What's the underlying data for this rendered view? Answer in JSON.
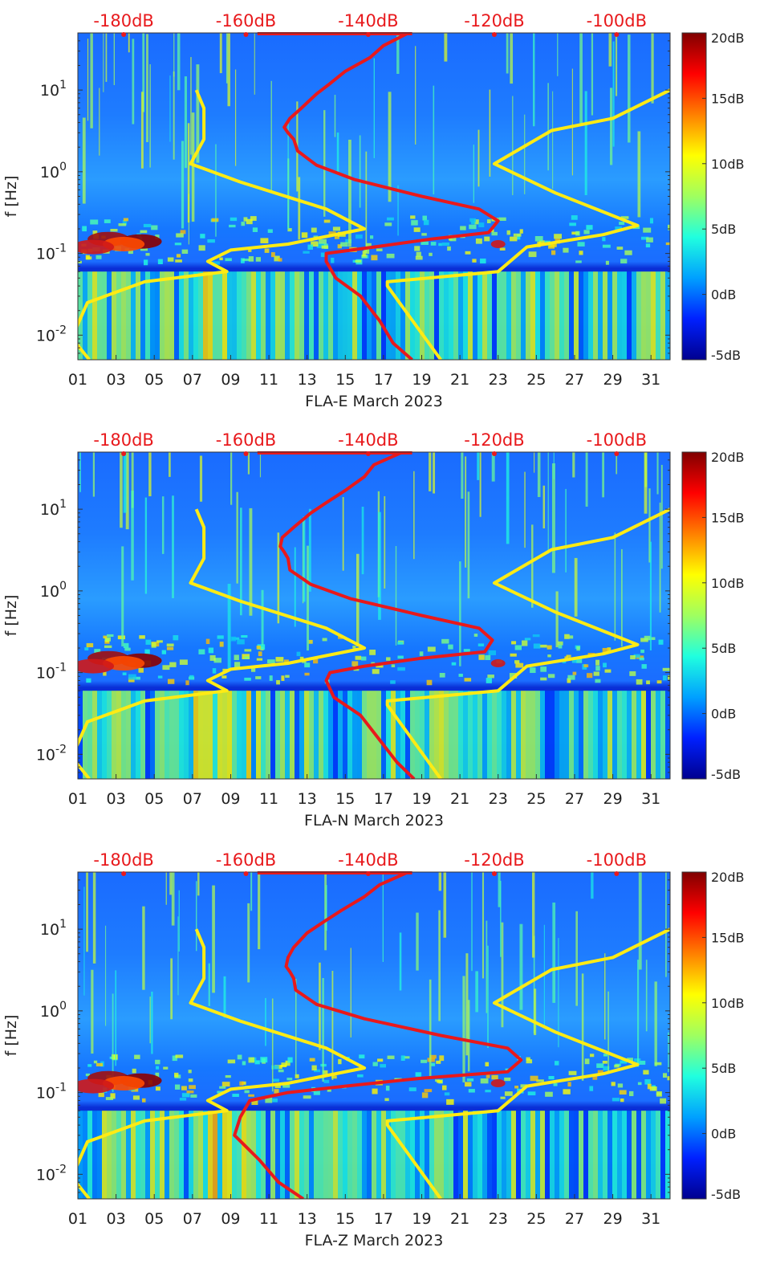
{
  "figure": {
    "colors": {
      "model_curve": "#e8191c",
      "noise_curve": "#ffeb14",
      "db_text": "#e8191c",
      "axis_text": "#222222"
    },
    "colormap": [
      "#00008f",
      "#0020ff",
      "#00a0ff",
      "#20ffdf",
      "#9fff60",
      "#ffff00",
      "#ff8000",
      "#ff0000",
      "#800000"
    ]
  },
  "chart_data": [
    {
      "type": "heatmap",
      "xlabel": "FLA-E March 2023",
      "ylabel": "f [Hz]",
      "x_tick_labels": [
        "01",
        "03",
        "05",
        "07",
        "09",
        "11",
        "13",
        "15",
        "17",
        "19",
        "21",
        "23",
        "25",
        "27",
        "29",
        "31"
      ],
      "xlim": [
        1,
        32
      ],
      "y_scale": "log",
      "ylim": [
        0.005,
        50
      ],
      "y_ticks": [
        {
          "value": 0.01,
          "base": "10",
          "exp": "-2"
        },
        {
          "value": 0.1,
          "base": "10",
          "exp": "-1"
        },
        {
          "value": 1,
          "base": "10",
          "exp": "0"
        },
        {
          "value": 10,
          "base": "10",
          "exp": "1"
        }
      ],
      "top_axis_labels": [
        "-180dB",
        "-160dB",
        "-140dB",
        "-120dB",
        "-100dB"
      ],
      "top_axis_day_positions": [
        3.4,
        9.8,
        16.2,
        22.8,
        29.2
      ],
      "colorbar": {
        "ticks": [
          "20dB",
          "15dB",
          "10dB",
          "5dB",
          "0dB",
          "-5dB"
        ],
        "range": [
          -5,
          20
        ]
      },
      "series": [
        {
          "name": "model-power-curve",
          "color": "#e8191c",
          "x_day": [
            18.3,
            17.0,
            16.3,
            15.0,
            14.2,
            13.5,
            12.7,
            12.1,
            11.8,
            12.0,
            12.3,
            12.5,
            13.5,
            15.5,
            19.0,
            22.0,
            23.0,
            22.5,
            19.5,
            16.5,
            14.0,
            14.0,
            14.5,
            15.8,
            16.8,
            17.5,
            18.5
          ],
          "f_hz": [
            50,
            35,
            25,
            17,
            12,
            9,
            6,
            4.5,
            3.5,
            3,
            2.5,
            1.8,
            1.2,
            0.8,
            0.5,
            0.35,
            0.25,
            0.18,
            0.15,
            0.12,
            0.1,
            0.08,
            0.05,
            0.03,
            0.015,
            0.008,
            0.005
          ]
        },
        {
          "name": "noise-model-curve",
          "color": "#ffeb14",
          "x_day": [
            7.2,
            7.6,
            7.6,
            6.9,
            9.5,
            14.0,
            16.0,
            12.0,
            9.0,
            7.8,
            8.8,
            4.5,
            1.5,
            0.9,
            0.9,
            1.6
          ],
          "f_hz": [
            10,
            6,
            2.5,
            1.25,
            0.75,
            0.35,
            0.2,
            0.13,
            0.11,
            0.08,
            0.06,
            0.045,
            0.025,
            0.012,
            0.008,
            0.005
          ]
        },
        {
          "name": "noise-model-curve-high",
          "color": "#ffeb14",
          "x_day": [
            32,
            29,
            25.8,
            22.8,
            26.0,
            30.3,
            28.5,
            24.5,
            23.0,
            17.2,
            17.2,
            20.0
          ],
          "f_hz": [
            10,
            4.5,
            3.2,
            1.25,
            0.55,
            0.22,
            0.17,
            0.12,
            0.06,
            0.045,
            0.04,
            0.005
          ]
        }
      ]
    },
    {
      "type": "heatmap",
      "xlabel": "FLA-N March 2023",
      "ylabel": "f [Hz]",
      "x_tick_labels": [
        "01",
        "03",
        "05",
        "07",
        "09",
        "11",
        "13",
        "15",
        "17",
        "19",
        "21",
        "23",
        "25",
        "27",
        "29",
        "31"
      ],
      "xlim": [
        1,
        32
      ],
      "y_scale": "log",
      "ylim": [
        0.005,
        50
      ],
      "y_ticks": [
        {
          "value": 0.01,
          "base": "10",
          "exp": "-2"
        },
        {
          "value": 0.1,
          "base": "10",
          "exp": "-1"
        },
        {
          "value": 1,
          "base": "10",
          "exp": "0"
        },
        {
          "value": 10,
          "base": "10",
          "exp": "1"
        }
      ],
      "top_axis_labels": [
        "-180dB",
        "-160dB",
        "-140dB",
        "-120dB",
        "-100dB"
      ],
      "top_axis_day_positions": [
        3.4,
        9.8,
        16.2,
        22.8,
        29.2
      ],
      "colorbar": {
        "ticks": [
          "20dB",
          "15dB",
          "10dB",
          "5dB",
          "0dB",
          "-5dB"
        ],
        "range": [
          -5,
          20
        ]
      },
      "series": [
        {
          "name": "model-power-curve",
          "color": "#e8191c",
          "x_day": [
            18.0,
            16.5,
            16.0,
            15.0,
            14.0,
            13.2,
            12.3,
            11.7,
            11.6,
            11.8,
            12.0,
            12.1,
            13.2,
            15.3,
            19.0,
            22.0,
            22.7,
            22.3,
            19.0,
            16.0,
            14.2,
            14.0,
            14.4,
            15.8,
            16.8,
            17.7,
            18.6
          ],
          "f_hz": [
            50,
            35,
            25,
            17,
            12,
            9,
            6,
            4.5,
            3.5,
            3,
            2.5,
            1.8,
            1.2,
            0.8,
            0.5,
            0.35,
            0.25,
            0.18,
            0.15,
            0.12,
            0.1,
            0.08,
            0.05,
            0.03,
            0.015,
            0.008,
            0.005
          ]
        },
        {
          "name": "noise-model-curve",
          "color": "#ffeb14",
          "x_day": [
            7.2,
            7.6,
            7.6,
            6.9,
            9.5,
            14.0,
            16.0,
            12.0,
            9.0,
            7.8,
            8.8,
            4.5,
            1.5,
            0.9,
            0.9,
            1.6
          ],
          "f_hz": [
            10,
            6,
            2.5,
            1.25,
            0.75,
            0.35,
            0.2,
            0.13,
            0.11,
            0.08,
            0.06,
            0.045,
            0.025,
            0.012,
            0.008,
            0.005
          ]
        },
        {
          "name": "noise-model-curve-high",
          "color": "#ffeb14",
          "x_day": [
            32,
            29,
            25.8,
            22.8,
            26.0,
            30.3,
            28.5,
            24.5,
            23.0,
            17.2,
            17.2,
            20.0
          ],
          "f_hz": [
            10,
            4.5,
            3.2,
            1.25,
            0.55,
            0.22,
            0.17,
            0.12,
            0.06,
            0.045,
            0.04,
            0.005
          ]
        }
      ]
    },
    {
      "type": "heatmap",
      "xlabel": "FLA-Z March 2023",
      "ylabel": "f [Hz]",
      "x_tick_labels": [
        "01",
        "03",
        "05",
        "07",
        "09",
        "11",
        "13",
        "15",
        "17",
        "19",
        "21",
        "23",
        "25",
        "27",
        "29",
        "31"
      ],
      "xlim": [
        1,
        32
      ],
      "y_scale": "log",
      "ylim": [
        0.005,
        50
      ],
      "y_ticks": [
        {
          "value": 0.01,
          "base": "10",
          "exp": "-2"
        },
        {
          "value": 0.1,
          "base": "10",
          "exp": "-1"
        },
        {
          "value": 1,
          "base": "10",
          "exp": "0"
        },
        {
          "value": 10,
          "base": "10",
          "exp": "1"
        }
      ],
      "top_axis_labels": [
        "-180dB",
        "-160dB",
        "-140dB",
        "-120dB",
        "-100dB"
      ],
      "top_axis_day_positions": [
        3.4,
        9.8,
        16.2,
        22.8,
        29.2
      ],
      "colorbar": {
        "ticks": [
          "20dB",
          "15dB",
          "10dB",
          "5dB",
          "0dB",
          "-5dB"
        ],
        "range": [
          -5,
          20
        ]
      },
      "series": [
        {
          "name": "model-power-curve",
          "color": "#e8191c",
          "x_day": [
            18.3,
            16.8,
            16.0,
            14.8,
            13.8,
            13.0,
            12.3,
            12.0,
            11.9,
            12.1,
            12.3,
            12.4,
            13.5,
            16.0,
            20.0,
            23.5,
            24.2,
            23.5,
            19.0,
            15.0,
            12.0,
            10.0,
            9.5,
            9.2,
            10.5,
            11.5,
            12.8
          ],
          "f_hz": [
            50,
            35,
            25,
            17,
            12,
            9,
            6,
            4.5,
            3.5,
            3,
            2.5,
            1.8,
            1.2,
            0.8,
            0.5,
            0.35,
            0.25,
            0.18,
            0.15,
            0.12,
            0.1,
            0.08,
            0.05,
            0.03,
            0.015,
            0.008,
            0.005
          ]
        },
        {
          "name": "noise-model-curve",
          "color": "#ffeb14",
          "x_day": [
            7.2,
            7.6,
            7.6,
            6.9,
            9.5,
            14.0,
            16.0,
            12.0,
            9.0,
            7.8,
            8.8,
            4.5,
            1.5,
            0.9,
            0.9,
            1.6
          ],
          "f_hz": [
            10,
            6,
            2.5,
            1.25,
            0.75,
            0.35,
            0.2,
            0.13,
            0.11,
            0.08,
            0.06,
            0.045,
            0.025,
            0.012,
            0.008,
            0.005
          ]
        },
        {
          "name": "noise-model-curve-high",
          "color": "#ffeb14",
          "x_day": [
            32,
            29,
            25.8,
            22.8,
            26.0,
            30.3,
            28.5,
            24.5,
            23.0,
            17.2,
            17.2,
            20.0
          ],
          "f_hz": [
            10,
            4.5,
            3.2,
            1.25,
            0.55,
            0.22,
            0.17,
            0.12,
            0.06,
            0.045,
            0.04,
            0.005
          ]
        }
      ]
    }
  ]
}
